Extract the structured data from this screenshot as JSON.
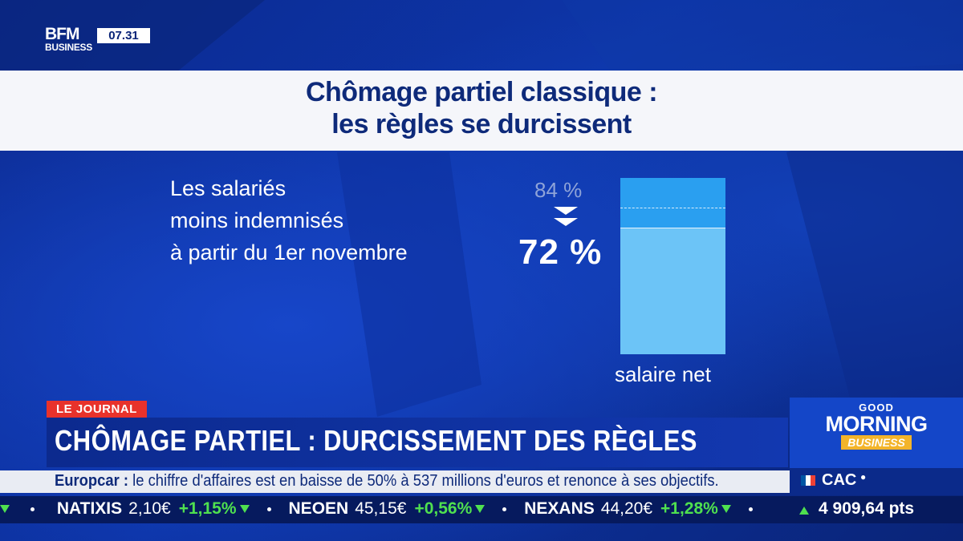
{
  "channel": {
    "logo_top": "BFM",
    "logo_bottom": "BUSINESS",
    "time": "07.31"
  },
  "title_card": {
    "line1": "Chômage partiel classique :",
    "line2": "les règles se durcissent"
  },
  "infographic": {
    "text_lines": [
      "Les salariés",
      "moins indemnisés",
      "à partir du 1er novembre"
    ],
    "old_value": "84 %",
    "new_value": "72 %",
    "bar_label": "salaire net",
    "old_fraction": 0.84,
    "new_fraction": 0.72,
    "colors": {
      "bar_top": "#2a9ff0",
      "bar_fill": "#6cc4f7"
    }
  },
  "lower_third": {
    "tag": "LE JOURNAL",
    "headline": "CHÔMAGE PARTIEL : DURCISSEMENT DES RÈGLES"
  },
  "show_logo": {
    "good": "GOOD",
    "morning": "MORNING",
    "business": "BUSINESS"
  },
  "news": {
    "brand": "Europcar :",
    "text": " le chiffre d'affaires est en baisse de 50% à 537 millions d'euros et renonce à ses objectifs."
  },
  "ticker": [
    {
      "name": "NATIXIS",
      "price": "2,10€",
      "change": "+1,15%",
      "direction": "down-icon"
    },
    {
      "name": "NEOEN",
      "price": "45,15€",
      "change": "+0,56%",
      "direction": "down-icon"
    },
    {
      "name": "NEXANS",
      "price": "44,20€",
      "change": "+1,28%",
      "direction": "down-icon"
    }
  ],
  "market": {
    "index_name": "CAC",
    "index_value": "4 909,64 pts",
    "flag_colors": [
      "#0055a4",
      "#ffffff",
      "#ef4135"
    ]
  }
}
